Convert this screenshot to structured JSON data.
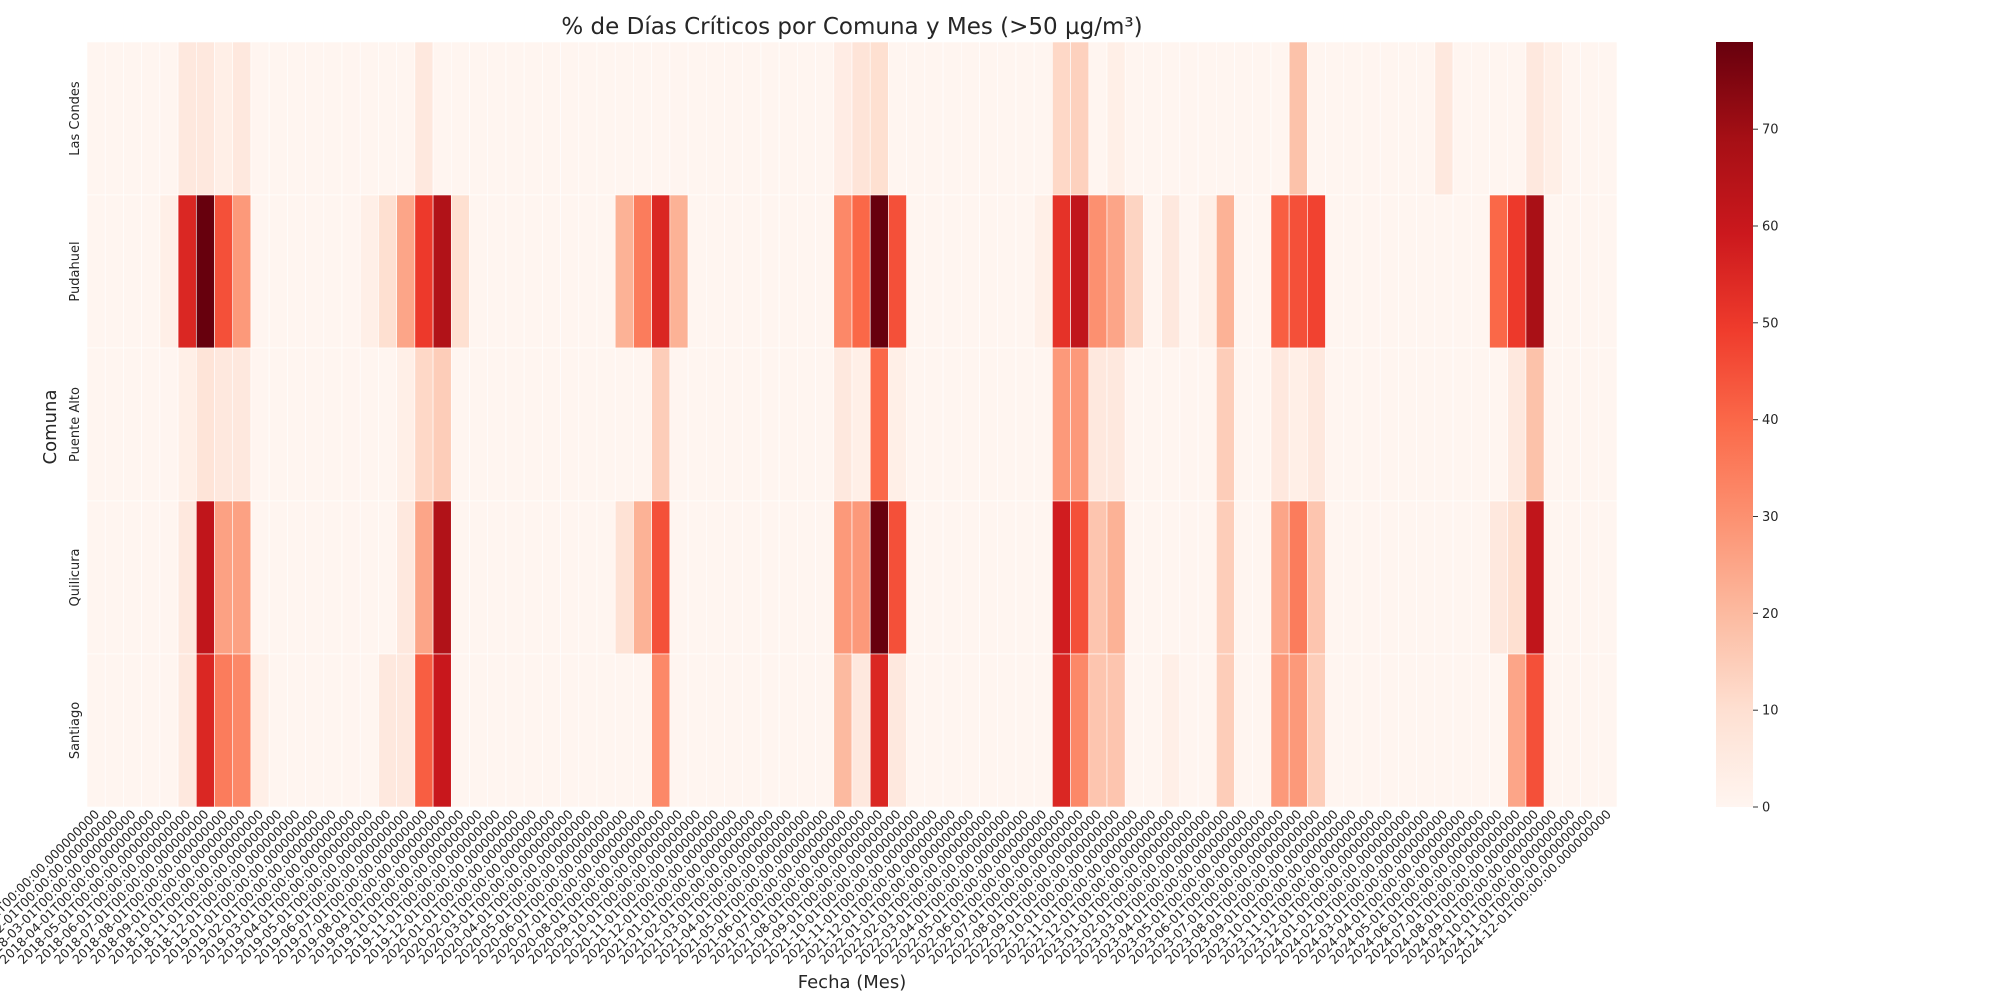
{
  "chart_data": {
    "type": "heatmap",
    "title": "% de Días Críticos por Comuna y Mes (>50 µg/m³)",
    "xlabel": "Fecha (Mes)",
    "ylabel": "Comuna",
    "rows": [
      "Las Condes",
      "Pudahuel",
      "Puente Alto",
      "Quilicura",
      "Santiago"
    ],
    "start_year": 2018,
    "months": 84,
    "x": [],
    "colorbar": {
      "min": 0,
      "max": 79,
      "ticks": [
        0,
        10,
        20,
        30,
        40,
        50,
        60,
        70
      ]
    },
    "colors": {
      "low": "#fff5f0",
      "high": "#67000d"
    },
    "values": {
      "Las Condes": {
        "2018-06": 6,
        "2018-07": 6,
        "2018-08": 3,
        "2018-09": 6,
        "2019-07": 6,
        "2021-06": 4,
        "2021-07": 8,
        "2021-08": 10,
        "2022-06": 12,
        "2022-07": 14,
        "2022-09": 3,
        "2023-07": 18,
        "2024-03": 6,
        "2024-08": 6,
        "2024-09": 3
      },
      "Pudahuel": {
        "2018-05": 3,
        "2018-06": 55,
        "2018-07": 79,
        "2018-08": 45,
        "2018-09": 28,
        "2019-04": 3,
        "2019-05": 10,
        "2019-06": 25,
        "2019-07": 50,
        "2019-08": 66,
        "2019-09": 10,
        "2020-06": 22,
        "2020-07": 35,
        "2020-08": 55,
        "2020-09": 22,
        "2021-06": 32,
        "2021-07": 40,
        "2021-08": 79,
        "2021-09": 45,
        "2022-05": 3,
        "2022-06": 52,
        "2022-07": 62,
        "2022-08": 30,
        "2022-09": 25,
        "2022-10": 13,
        "2022-12": 6,
        "2023-02": 3,
        "2023-03": 22,
        "2023-06": 42,
        "2023-07": 45,
        "2023-08": 48,
        "2024-06": 40,
        "2024-07": 50,
        "2024-08": 68
      },
      "Puente Alto": {
        "2018-06": 3,
        "2018-07": 8,
        "2018-08": 6,
        "2018-09": 6,
        "2019-06": 3,
        "2019-07": 12,
        "2019-08": 15,
        "2020-08": 15,
        "2021-06": 6,
        "2021-07": 3,
        "2021-08": 40,
        "2021-09": 3,
        "2022-06": 28,
        "2022-07": 28,
        "2022-08": 6,
        "2022-09": 6,
        "2023-03": 15,
        "2023-06": 6,
        "2023-07": 3,
        "2023-08": 6,
        "2024-07": 6,
        "2024-08": 18
      },
      "Quilicura": {
        "2018-06": 6,
        "2018-07": 62,
        "2018-08": 26,
        "2018-09": 26,
        "2019-06": 6,
        "2019-07": 25,
        "2019-08": 66,
        "2020-06": 9,
        "2020-07": 22,
        "2020-08": 45,
        "2021-06": 28,
        "2021-07": 28,
        "2021-08": 79,
        "2021-09": 45,
        "2022-06": 58,
        "2022-07": 45,
        "2022-08": 17,
        "2022-09": 22,
        "2023-03": 15,
        "2023-06": 25,
        "2023-07": 35,
        "2023-08": 17,
        "2024-06": 6,
        "2024-07": 10,
        "2024-08": 62
      },
      "Santiago": {
        "2018-06": 6,
        "2018-07": 55,
        "2018-08": 35,
        "2018-09": 32,
        "2018-10": 3,
        "2019-05": 6,
        "2019-06": 6,
        "2019-07": 42,
        "2019-08": 60,
        "2020-08": 32,
        "2021-06": 20,
        "2021-07": 6,
        "2021-08": 55,
        "2021-09": 6,
        "2022-06": 55,
        "2022-07": 32,
        "2022-08": 17,
        "2022-09": 17,
        "2022-12": 3,
        "2023-03": 15,
        "2023-06": 28,
        "2023-07": 28,
        "2023-08": 15,
        "2024-07": 25,
        "2024-08": 45
      }
    }
  }
}
